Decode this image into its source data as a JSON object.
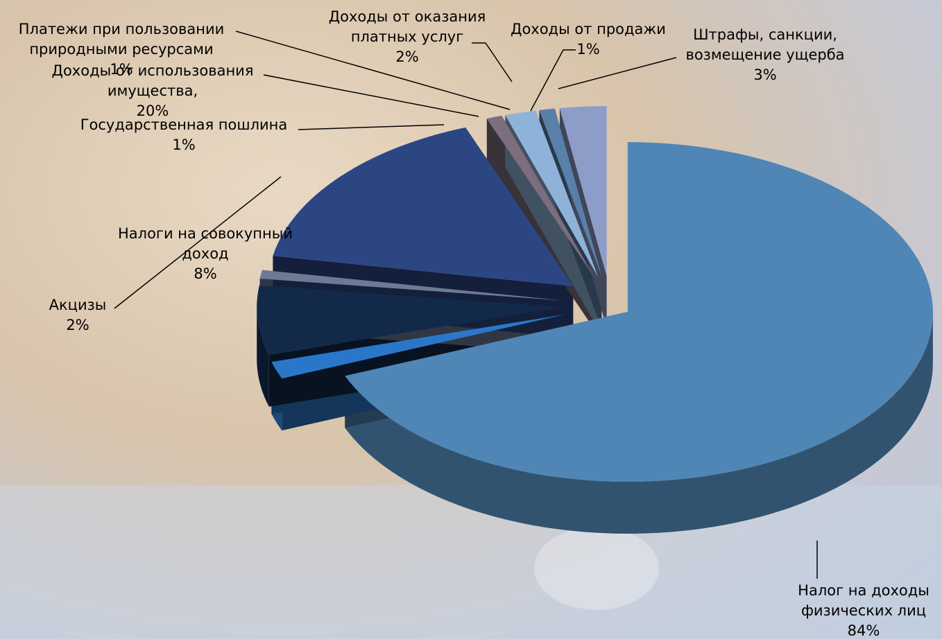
{
  "chart_data": {
    "type": "pie3d",
    "categories": [
      "Налог на доходы физических лиц",
      "Акцизы",
      "Налоги на совокупный доход",
      "Государственная пошлина",
      "Доходы от использования имущества,",
      "Платежи при пользовании природными ресурсами",
      "Доходы от оказания платных услуг",
      "Доходы от продажи",
      "Штрафы, санкции, возмещение ущерба"
    ],
    "values": [
      84,
      2,
      8,
      1,
      20,
      1,
      2,
      1,
      3
    ],
    "value_labels": [
      "84%",
      "2%",
      "8%",
      "1%",
      "20%",
      "1%",
      "2%",
      "1%",
      "3%"
    ],
    "colors": [
      "#4f86b5",
      "#2a77c9",
      "#12294a",
      "#6b7b96",
      "#2c4684",
      "#7c6e7e",
      "#8fb3d8",
      "#5a7fa8",
      "#8e9cc8"
    ]
  }
}
